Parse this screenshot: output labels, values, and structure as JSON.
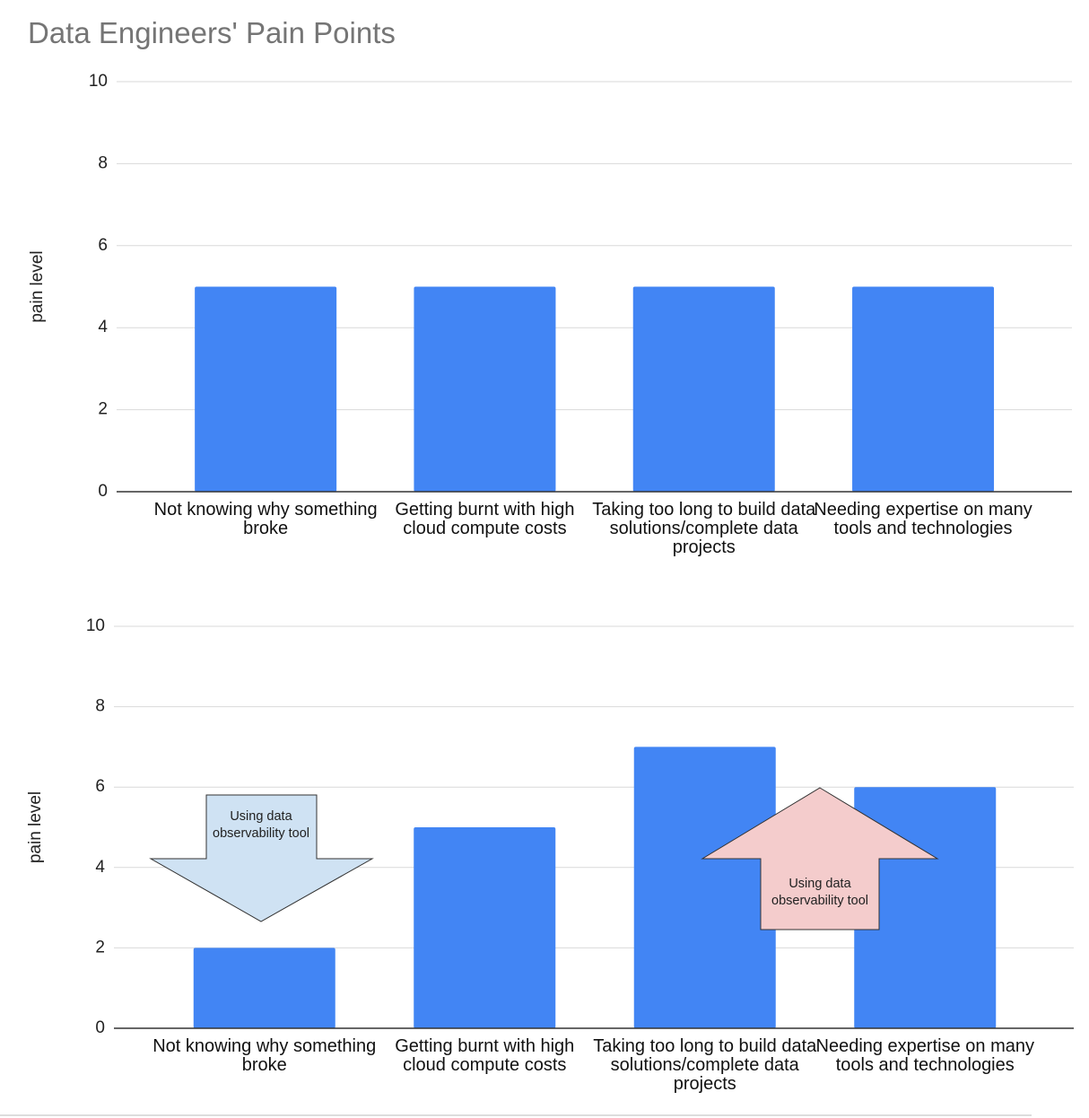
{
  "chart_data": [
    {
      "type": "bar",
      "title": "Data Engineers' Pain Points",
      "y_label": "pain level",
      "categories": [
        "Not knowing why something broke",
        "Getting burnt with high cloud compute costs",
        "Taking too long to build data solutions/complete data projects",
        "Needing expertise on many tools and technologies"
      ],
      "values": [
        5,
        5,
        5,
        5
      ],
      "color": "#4285f4",
      "ylim": [
        0,
        10
      ],
      "yticks": [
        0,
        2,
        4,
        6,
        8,
        10
      ],
      "grid": true
    },
    {
      "type": "bar",
      "y_label": "pain level",
      "categories": [
        "Not knowing why something broke",
        "Getting burnt with high cloud compute costs",
        "Taking too long to build data solutions/complete data projects",
        "Needing expertise on many tools and technologies"
      ],
      "values": [
        2,
        5,
        7,
        6
      ],
      "color": "#4285f4",
      "ylim": [
        0,
        10
      ],
      "yticks": [
        0,
        2,
        4,
        6,
        8,
        10
      ],
      "grid": true,
      "annotations": [
        {
          "text": "Using data observability tool",
          "direction": "down",
          "color": "#cfe2f3"
        },
        {
          "text": "Using data observability tool",
          "direction": "up",
          "color": "#f4cccc"
        }
      ]
    }
  ]
}
